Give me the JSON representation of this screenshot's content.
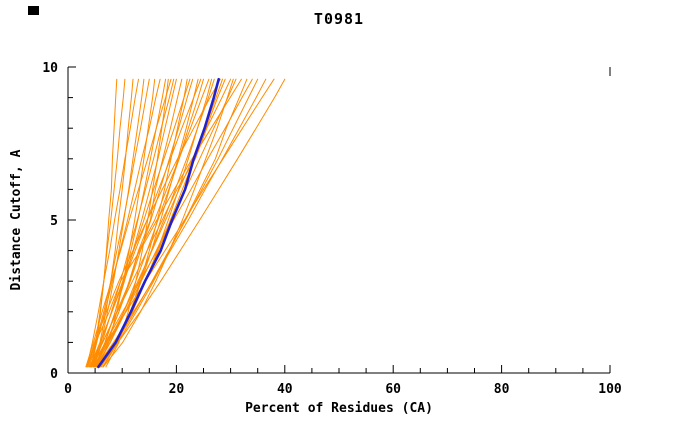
{
  "page": {
    "background": "#ffffff"
  },
  "chart_data": {
    "type": "line",
    "title": "T0981",
    "xlabel": "Percent of Residues (CA)",
    "ylabel": "Distance Cutoff, A",
    "xlim": [
      0,
      100
    ],
    "ylim": [
      0,
      10
    ],
    "x_major_ticks": [
      0,
      20,
      40,
      60,
      80,
      100
    ],
    "x_minor_ticks": [
      5,
      10,
      15,
      25,
      30,
      35,
      45,
      50,
      55,
      65,
      70,
      75,
      85,
      90,
      95
    ],
    "y_major_ticks": [
      0,
      5,
      10
    ],
    "y_minor_ticks": [
      1,
      2,
      3,
      4,
      6,
      7,
      8,
      9
    ],
    "top_ticks": [
      0,
      100
    ],
    "grid": false,
    "legend": "none",
    "colors": {
      "models": "#ff8c00",
      "median": "#2222cc",
      "axis": "#000000"
    },
    "y": [
      0.2,
      1,
      2,
      3,
      4,
      5,
      6,
      7,
      8,
      9,
      9.6
    ],
    "models": [
      [
        4.3,
        5.3,
        6.0,
        6.6,
        7.1,
        7.5,
        8.0,
        8.2,
        8.5,
        8.8,
        9.0
      ],
      [
        4.6,
        5.9,
        7.0,
        7.9,
        8.7,
        9.3,
        10.0,
        10.6,
        11.1,
        11.7,
        12.0
      ],
      [
        4.7,
        6.1,
        7.3,
        8.4,
        9.4,
        10.3,
        11.2,
        12.0,
        12.8,
        13.6,
        14.0
      ],
      [
        3.7,
        5.1,
        6.6,
        7.9,
        9.0,
        10.2,
        11.3,
        12.3,
        13.4,
        14.4,
        15.0
      ],
      [
        5.6,
        7.5,
        9.0,
        10.2,
        11.3,
        12.3,
        13.2,
        14.0,
        14.8,
        15.6,
        16.0
      ],
      [
        3.9,
        5.3,
        6.8,
        8.2,
        9.6,
        11.0,
        12.3,
        13.6,
        15.0,
        16.2,
        17.0
      ],
      [
        4.9,
        6.9,
        8.7,
        10.2,
        11.6,
        12.9,
        14.1,
        15.2,
        16.3,
        17.4,
        18.0
      ],
      [
        7.0,
        9.4,
        11.1,
        12.5,
        13.7,
        14.7,
        15.6,
        16.5,
        17.3,
        18.1,
        18.5
      ],
      [
        3.3,
        4.7,
        6.3,
        8.0,
        9.7,
        11.3,
        13.0,
        14.7,
        16.3,
        18.0,
        19.0
      ],
      [
        4.9,
        6.8,
        8.7,
        10.4,
        12.0,
        13.6,
        15.1,
        16.6,
        17.9,
        19.2,
        20.0
      ],
      [
        4.7,
        7.2,
        9.4,
        11.3,
        13.0,
        15.2,
        16.1,
        17.5,
        18.9,
        20.2,
        21.0
      ],
      [
        6.5,
        9.2,
        11.5,
        13.4,
        15.0,
        16.5,
        17.8,
        19.0,
        20.2,
        21.4,
        22.0
      ],
      [
        4.0,
        5.9,
        8.1,
        10.1,
        12.1,
        14.0,
        15.8,
        17.7,
        19.6,
        21.4,
        22.5
      ],
      [
        4.9,
        7.1,
        9.4,
        11.5,
        13.4,
        15.3,
        17.0,
        18.7,
        20.4,
        22.0,
        23.0
      ],
      [
        6.4,
        9.1,
        11.5,
        13.5,
        15.4,
        17.1,
        18.7,
        20.3,
        21.8,
        23.2,
        24.0
      ],
      [
        4.2,
        6.0,
        8.1,
        10.3,
        12.4,
        14.6,
        16.7,
        18.9,
        21.0,
        23.2,
        24.5
      ],
      [
        5.3,
        7.8,
        10.3,
        12.5,
        14.6,
        16.6,
        18.6,
        20.5,
        22.2,
        24.0,
        25.0
      ],
      [
        4.2,
        6.4,
        9.0,
        11.4,
        13.1,
        16.0,
        18.2,
        20.5,
        22.6,
        24.7,
        26.0
      ],
      [
        6.0,
        9.1,
        11.9,
        14.3,
        16.5,
        18.5,
        20.4,
        22.2,
        23.9,
        25.6,
        26.5
      ],
      [
        5.1,
        7.8,
        10.6,
        13.1,
        15.4,
        17.7,
        19.8,
        21.9,
        23.9,
        25.9,
        27.0
      ],
      [
        3.5,
        4.9,
        7.1,
        9.4,
        12.0,
        14.6,
        17.4,
        20.2,
        23.2,
        26.2,
        28.1
      ],
      [
        6.1,
        8.9,
        11.7,
        14.3,
        16.7,
        18.9,
        21.1,
        23.3,
        25.3,
        27.3,
        28.5
      ],
      [
        5.0,
        7.4,
        10.3,
        12.9,
        15.5,
        18.0,
        20.5,
        23.0,
        25.5,
        27.6,
        29.0
      ],
      [
        4.2,
        6.4,
        9.1,
        11.9,
        14.6,
        17.4,
        20.1,
        23.5,
        25.6,
        28.4,
        30.0
      ],
      [
        6.5,
        10.1,
        13.4,
        16.2,
        18.7,
        21.1,
        23.3,
        25.4,
        27.5,
        29.4,
        30.5
      ],
      [
        4.8,
        7.5,
        10.6,
        13.5,
        16.3,
        19.0,
        21.7,
        24.3,
        26.9,
        29.5,
        31.0
      ],
      [
        3.5,
        5.1,
        7.6,
        9.7,
        13.3,
        16.4,
        19.6,
        22.9,
        26.4,
        29.9,
        32.0
      ],
      [
        5.8,
        9.2,
        12.6,
        15.8,
        18.7,
        21.6,
        24.4,
        27.2,
        29.2,
        31.6,
        33.0
      ],
      [
        4.4,
        6.9,
        10.1,
        13.3,
        16.4,
        19.5,
        22.7,
        25.8,
        29.0,
        32.1,
        34.0
      ],
      [
        5.9,
        8.9,
        12.3,
        15.5,
        18.6,
        21.7,
        24.7,
        27.7,
        30.5,
        33.3,
        35.0
      ],
      [
        5.2,
        8.4,
        12.1,
        15.6,
        18.9,
        22.2,
        25.3,
        28.5,
        31.6,
        34.7,
        36.5
      ],
      [
        4.2,
        7.1,
        10.7,
        14.3,
        17.9,
        21.5,
        25.0,
        28.6,
        32.2,
        35.8,
        38.0
      ],
      [
        5.7,
        9.2,
        13.3,
        17.1,
        20.7,
        24.3,
        27.8,
        31.3,
        34.7,
        38.1,
        40.0
      ],
      [
        4.3,
        5.1,
        5.9,
        6.6,
        7.2,
        7.9,
        8.5,
        9.1,
        9.6,
        10.2,
        10.5
      ],
      [
        3.5,
        4.5,
        5.6,
        6.6,
        7.7,
        8.6,
        9.6,
        10.5,
        11.5,
        12.4,
        13.0
      ],
      [
        4.8,
        6.3,
        8.0,
        9.7,
        11.2,
        12.8,
        14.3,
        15.8,
        17.2,
        18.7,
        19.5
      ]
    ],
    "median": [
      5.6,
      8.8,
      11.6,
      14.2,
      17.1,
      19.2,
      21.6,
      23.2,
      25.2,
      26.9,
      27.8
    ]
  }
}
